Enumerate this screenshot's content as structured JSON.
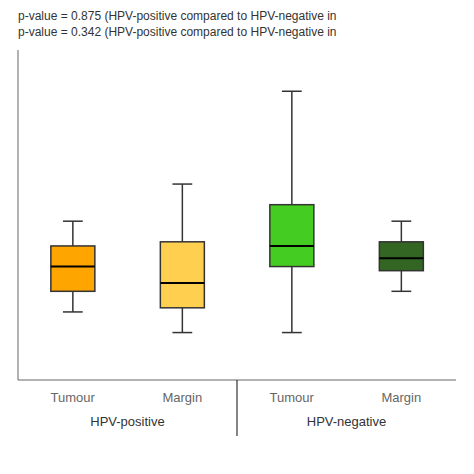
{
  "chart_data": {
    "type": "box",
    "annotations": [
      "p-value = 0.875 (HPV-positive compared to HPV-negative in",
      "p-value = 0.342 (HPV-positive compared to HPV-negative in"
    ],
    "categories": [
      "Tumour",
      "Margin",
      "Tumour",
      "Margin"
    ],
    "groups": [
      "HPV-positive",
      "HPV-positive",
      "HPV-negative",
      "HPV-negative"
    ],
    "whisker_low": [
      0.28,
      0.18,
      0.18,
      0.38
    ],
    "q1": [
      0.38,
      0.3,
      0.5,
      0.48
    ],
    "median": [
      0.5,
      0.42,
      0.6,
      0.54
    ],
    "q3": [
      0.6,
      0.62,
      0.8,
      0.62
    ],
    "whisker_high": [
      0.72,
      0.9,
      1.35,
      0.72
    ],
    "colors": [
      "#FFA500",
      "#FFD050",
      "#44CC22",
      "#336622"
    ],
    "ylim": [
      -0.05,
      1.55
    ],
    "tick_labels": "x"
  }
}
